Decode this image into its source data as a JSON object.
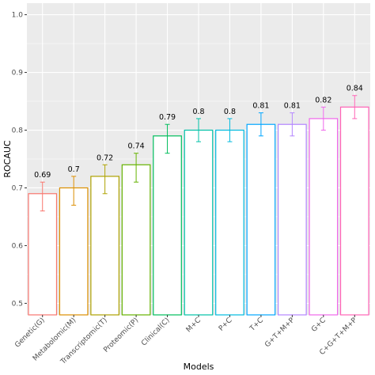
{
  "chart_data": {
    "type": "bar",
    "xlabel": "Models",
    "ylabel": "ROCAUC",
    "ylim": [
      0.48,
      1.02
    ],
    "yticks": [
      0.5,
      0.6,
      0.7,
      0.8,
      0.9,
      1.0
    ],
    "ytick_labels": [
      "0.5",
      "0.6",
      "0.7",
      "0.8",
      "0.9",
      "1.0"
    ],
    "grid": true,
    "legend": "none",
    "categories": [
      "Genetic(G)",
      "Metabolomic(M)",
      "Transcriptomic(T)",
      "Proteomic(P)",
      "Clinical(C)",
      "M+C",
      "P+C",
      "T+C",
      "G+T+M+P",
      "G+C",
      "C+G+T+M+P"
    ],
    "values": [
      0.69,
      0.7,
      0.72,
      0.74,
      0.79,
      0.8,
      0.8,
      0.81,
      0.81,
      0.82,
      0.84
    ],
    "value_labels": [
      "0.69",
      "0.7",
      "0.72",
      "0.74",
      "0.79",
      "0.8",
      "0.8",
      "0.81",
      "0.81",
      "0.82",
      "0.84"
    ],
    "error_low": [
      0.66,
      0.67,
      0.69,
      0.71,
      0.76,
      0.78,
      0.78,
      0.79,
      0.79,
      0.8,
      0.82
    ],
    "error_high": [
      0.71,
      0.72,
      0.74,
      0.76,
      0.81,
      0.82,
      0.82,
      0.83,
      0.83,
      0.84,
      0.86
    ],
    "colors": [
      "#F8766D",
      "#DB8E00",
      "#AEA200",
      "#64B200",
      "#00BD5C",
      "#00C1A7",
      "#00BADE",
      "#00A6FF",
      "#B385FF",
      "#EF67EB",
      "#FF63B6"
    ],
    "panel_background": "#EBEBEB",
    "grid_color": "#FFFFFF"
  }
}
